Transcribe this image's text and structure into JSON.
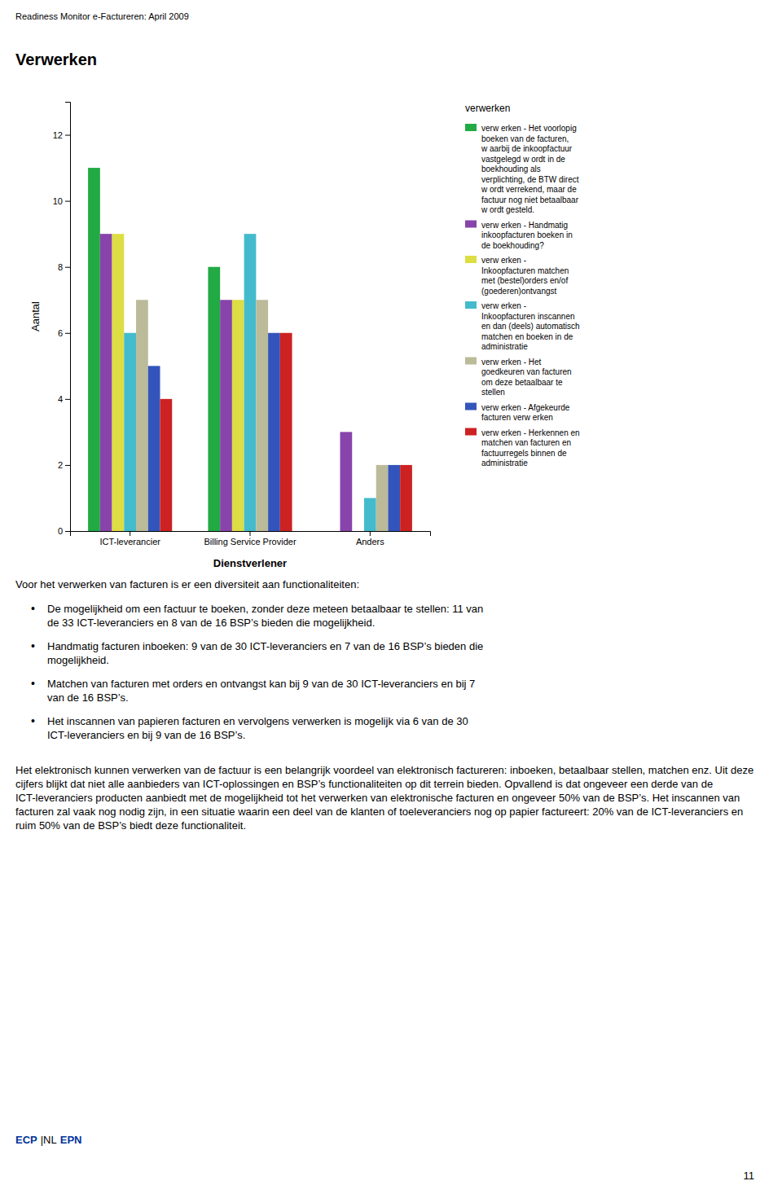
{
  "page_title": "Readiness Monitor e-Factureren: April 2009",
  "chart_data": {
    "type": "bar",
    "title": "Verwerken",
    "xlabel": "Dienstverlener",
    "ylabel": "Aantal",
    "legend_title": "verwerken",
    "legend": "right",
    "grid": false,
    "categories": [
      "ICT-leverancier",
      "Billing Service Provider",
      "Anders"
    ],
    "ylim": [
      0,
      13
    ],
    "yticks": [
      0,
      2,
      4,
      6,
      8,
      10,
      12
    ],
    "series": [
      {
        "name": "verw erken - Het voorlopig\nboeken van de facturen,\nw aarbij de inkoopfactuur\nvastgelegd w ordt in de\nboekhouding als\nverplichting, de BTW direct\nw ordt verrekend, maar de\nfactuur nog niet betaalbaar\nw ordt gesteld.",
        "color": "#22AA44",
        "values": [
          11,
          8,
          0
        ]
      },
      {
        "name": "verw erken - Handmatig\ninkoopfacturen boeken in\nde boekhouding?",
        "color": "#8844AA",
        "values": [
          9,
          7,
          3
        ]
      },
      {
        "name": "verw erken -\nInkoopfacturen matchen\nmet (bestel)orders en/of\n(goederen)ontvangst",
        "color": "#DDDD44",
        "values": [
          9,
          7,
          0
        ]
      },
      {
        "name": "verw erken -\nInkoopfacturen inscannen\nen dan (deels) automatisch\nmatchen en boeken in de\nadministratie",
        "color": "#44BBCC",
        "values": [
          6,
          9,
          1
        ]
      },
      {
        "name": "verw erken - Het\ngoedkeuren van facturen\nom deze betaalbaar te\nstellen",
        "color": "#BBBB99",
        "values": [
          7,
          7,
          2
        ]
      },
      {
        "name": "verw erken - Afgekeurde\nfacturen verw erken",
        "color": "#3355BB",
        "values": [
          5,
          6,
          2
        ]
      },
      {
        "name": "verw erken - Herkennen en\nmatchen van facturen en\nfactuurregels binnen de\nadministratie",
        "color": "#CC2222",
        "values": [
          4,
          6,
          2
        ]
      }
    ]
  },
  "intro_text": "Voor het verwerken van facturen is er een diversiteit aan functionaliteiten:",
  "bullet_symbol": "•",
  "bullets": [
    "De mogelijkheid om een factuur te boeken, zonder deze meteen betaalbaar te stellen: 11 van\nde 33 ICT-leveranciers en 8 van de 16 BSP’s bieden die mogelijkheid.",
    "Handmatig facturen inboeken: 9 van de 30 ICT-leveranciers en 7 van de 16 BSP’s bieden die\nmogelijkheid.",
    "Matchen van facturen met orders en ontvangst kan bij 9 van de 30 ICT-leveranciers en bij 7\nvan de 16 BSP’s.",
    "Het inscannen van papieren facturen en vervolgens verwerken is mogelijk via 6 van de 30\nICT-leveranciers en bij 9 van de 16 BSP’s."
  ],
  "body_text": "Het elektronisch kunnen verwerken van de factuur is een belangrijk voordeel van elektronisch factureren: inboeken, betaalbaar stellen, matchen enz. Uit deze cijfers blijkt dat niet alle aanbieders van ICT-oplossingen en BSP’s functionaliteiten op dit terrein bieden. Opvallend is dat ongeveer een derde van de ICT-leveranciers producten aanbiedt met de mogelijkheid tot het verwerken van elektronische facturen en ongeveer 50% van de BSP’s. Het inscannen van facturen zal vaak nog nodig zijn, in een situatie waarin een deel van de klanten of toeleveranciers nog op papier factureert: 20% van de ICT-leveranciers en ruim 50% van de BSP’s biedt deze functionaliteit.",
  "page_number": "11",
  "logos": [
    {
      "text": "ECP",
      "color": "#003399"
    },
    {
      "text": "|NL",
      "color": "#000000"
    },
    {
      "text": "EPN",
      "color": "#003399"
    }
  ]
}
